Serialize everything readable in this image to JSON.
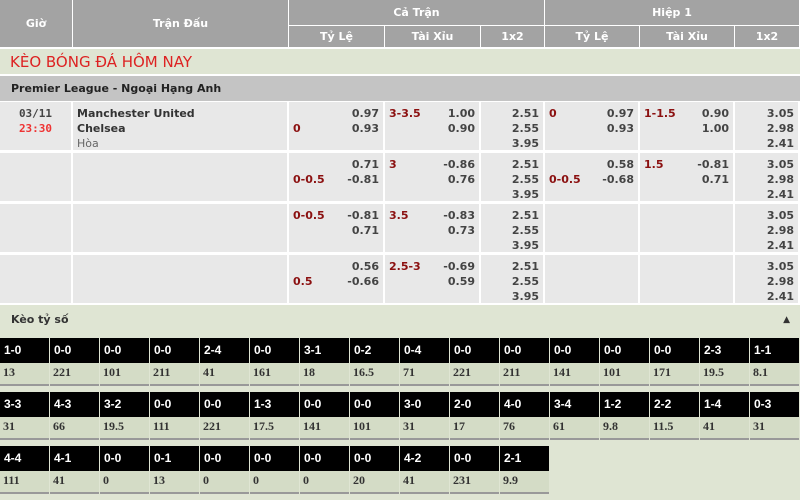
{
  "header": {
    "time": "Giờ",
    "match": "Trận Đấu",
    "full": "Cả Trận",
    "half": "Hiệp 1",
    "handicap": "Tỷ Lệ",
    "overunder": "Tài Xỉu",
    "x12": "1x2"
  },
  "title": "KÈO BÓNG ĐÁ HÔM NAY",
  "league": "Premier League - Ngoại Hạng Anh",
  "match": {
    "date": "03/11",
    "time": "23:30",
    "home": "Manchester United",
    "away": "Chelsea",
    "draw": "Hòa"
  },
  "rows": [
    {
      "ft_hdp": {
        "label": "0",
        "label_line": 2,
        "top": "0.97",
        "bottom": "0.93"
      },
      "ft_ou": {
        "label": "3-3.5",
        "top": "1.00",
        "bottom": "0.90"
      },
      "ft_1x2": [
        "2.51",
        "2.55",
        "3.95"
      ],
      "h1_hdp": {
        "label": "0",
        "label_line": 1,
        "top": "0.97",
        "bottom": "0.93"
      },
      "h1_ou": {
        "label": "1-1.5",
        "top": "0.90",
        "bottom": "1.00"
      },
      "h1_1x2": [
        "3.05",
        "2.98",
        "2.41"
      ]
    },
    {
      "ft_hdp": {
        "label": "0-0.5",
        "label_line": 2,
        "top": "0.71",
        "bottom": "-0.81"
      },
      "ft_ou": {
        "label": "3",
        "top": "-0.86",
        "bottom": "0.76"
      },
      "ft_1x2": [
        "2.51",
        "2.55",
        "3.95"
      ],
      "h1_hdp": {
        "label": "0-0.5",
        "label_line": 2,
        "top": "0.58",
        "bottom": "-0.68"
      },
      "h1_ou": {
        "label": "1.5",
        "top": "-0.81",
        "bottom": "0.71"
      },
      "h1_1x2": [
        "3.05",
        "2.98",
        "2.41"
      ]
    },
    {
      "ft_hdp": {
        "label": "0-0.5",
        "label_line": 1,
        "top": "-0.81",
        "bottom": "0.71"
      },
      "ft_ou": {
        "label": "3.5",
        "top": "-0.83",
        "bottom": "0.73"
      },
      "ft_1x2": [
        "2.51",
        "2.55",
        "3.95"
      ],
      "h1_hdp": null,
      "h1_ou": null,
      "h1_1x2": [
        "3.05",
        "2.98",
        "2.41"
      ]
    },
    {
      "ft_hdp": {
        "label": "0.5",
        "label_line": 2,
        "top": "0.56",
        "bottom": "-0.66"
      },
      "ft_ou": {
        "label": "2.5-3",
        "top": "-0.69",
        "bottom": "0.59"
      },
      "ft_1x2": [
        "2.51",
        "2.55",
        "3.95"
      ],
      "h1_hdp": null,
      "h1_ou": null,
      "h1_1x2": [
        "3.05",
        "2.98",
        "2.41"
      ]
    }
  ],
  "correct_score": {
    "title": "Kèo tỷ số",
    "collapse_icon": "triangle-up-icon",
    "items": [
      [
        "1-0",
        "13"
      ],
      [
        "0-0",
        "221"
      ],
      [
        "0-0",
        "101"
      ],
      [
        "0-0",
        "211"
      ],
      [
        "2-4",
        "41"
      ],
      [
        "0-0",
        "161"
      ],
      [
        "3-1",
        "18"
      ],
      [
        "0-2",
        "16.5"
      ],
      [
        "0-4",
        "71"
      ],
      [
        "0-0",
        "221"
      ],
      [
        "0-0",
        "211"
      ],
      [
        "0-0",
        "141"
      ],
      [
        "0-0",
        "101"
      ],
      [
        "0-0",
        "171"
      ],
      [
        "2-3",
        "19.5"
      ],
      [
        "1-1",
        "8.1"
      ],
      [
        "3-3",
        "31"
      ],
      [
        "4-3",
        "66"
      ],
      [
        "3-2",
        "19.5"
      ],
      [
        "0-0",
        "111"
      ],
      [
        "0-0",
        "221"
      ],
      [
        "1-3",
        "17.5"
      ],
      [
        "0-0",
        "141"
      ],
      [
        "0-0",
        "101"
      ],
      [
        "3-0",
        "31"
      ],
      [
        "2-0",
        "17"
      ],
      [
        "4-0",
        "76"
      ],
      [
        "3-4",
        "61"
      ],
      [
        "1-2",
        "9.8"
      ],
      [
        "2-2",
        "11.5"
      ],
      [
        "1-4",
        "41"
      ],
      [
        "0-3",
        "31"
      ],
      [
        "4-4",
        "111"
      ],
      [
        "4-1",
        "41"
      ],
      [
        "0-0",
        "0"
      ],
      [
        "0-1",
        "13"
      ],
      [
        "0-0",
        "0"
      ],
      [
        "0-0",
        "0"
      ],
      [
        "0-0",
        "0"
      ],
      [
        "0-0",
        "20"
      ],
      [
        "4-2",
        "41"
      ],
      [
        "0-0",
        "231"
      ],
      [
        "2-1",
        "9.9"
      ]
    ]
  }
}
